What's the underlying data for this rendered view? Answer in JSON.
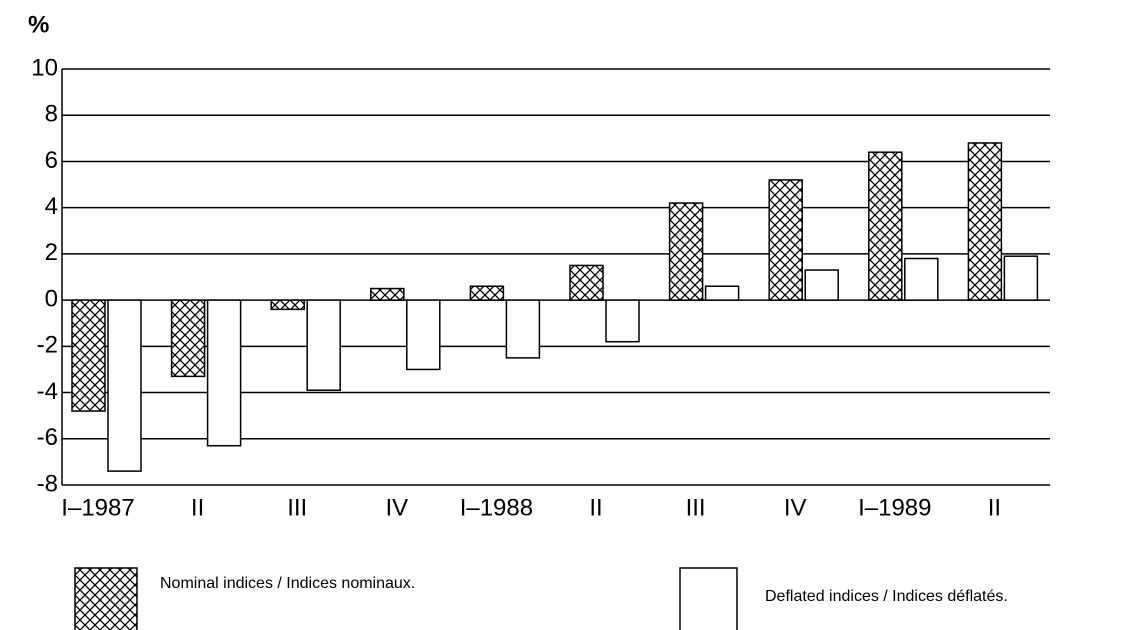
{
  "chart_data": {
    "type": "bar",
    "ylabel": "%",
    "categories": [
      "I–1987",
      "II",
      "III",
      "IV",
      "I–1988",
      "II",
      "III",
      "IV",
      "I–1989",
      "II"
    ],
    "series": [
      {
        "name": "Nominal indices / Indices nominaux.",
        "color": "#000000",
        "hatch": "crosshatch",
        "values": [
          -4.8,
          -3.3,
          -0.4,
          0.5,
          0.6,
          1.5,
          4.2,
          5.2,
          6.4,
          6.8
        ]
      },
      {
        "name": "Deflated indices / Indices déflatés.",
        "color": "#000000",
        "values": [
          -7.4,
          -6.3,
          -3.9,
          -3.0,
          -2.5,
          -1.8,
          0.6,
          1.3,
          1.8,
          1.9
        ]
      }
    ],
    "ylim": [
      -8,
      10
    ],
    "yticks": [
      -8,
      -6,
      -4,
      -2,
      0,
      2,
      4,
      6,
      8,
      10
    ],
    "grid": true
  }
}
